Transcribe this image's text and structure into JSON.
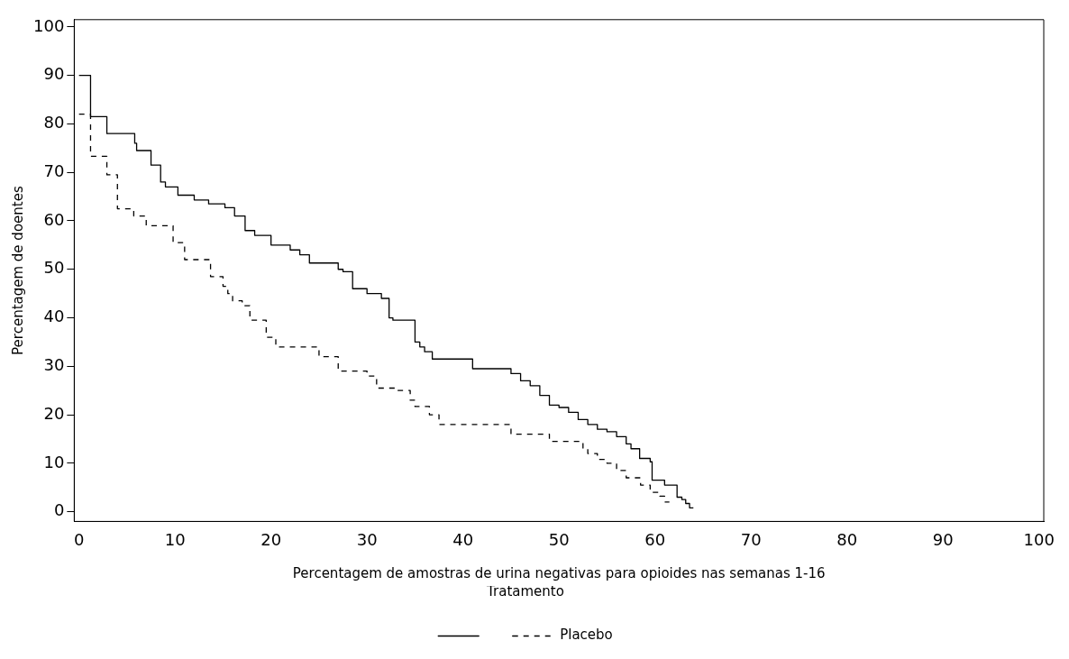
{
  "chart_data": {
    "type": "step",
    "xlabel": "Percentagem de amostras de urina negativas para opioides nas semanas 1-16",
    "ylabel": "Percentagem de doentes",
    "legend_title": "Tratamento",
    "legend": "bottom",
    "grid": false,
    "marker": "none",
    "xlim": [
      -0.5,
      100.5
    ],
    "ylim": [
      -2,
      101.5
    ],
    "xticks": [
      0,
      10,
      20,
      30,
      40,
      50,
      60,
      70,
      80,
      90,
      100
    ],
    "yticks": [
      0,
      10,
      20,
      30,
      40,
      50,
      60,
      70,
      80,
      90,
      100
    ],
    "series": [
      {
        "color": "#000000",
        "line_style": "solid",
        "x": [
          0,
          1.2,
          2.9,
          5.8,
          6,
          7.5,
          8.5,
          9,
          10.3,
          12,
          13.5,
          15.2,
          16.2,
          17.3,
          18.3,
          20,
          22,
          23,
          24,
          27,
          27.5,
          28.5,
          30,
          31.5,
          32.3,
          32.7,
          35,
          35.5,
          36,
          36.8,
          41,
          45,
          46,
          47,
          48,
          49,
          50,
          51,
          52,
          53,
          54,
          55,
          56,
          57,
          57.5,
          58.4,
          59.5,
          59.7,
          61,
          62.3,
          62.8,
          63.2,
          63.6,
          64
        ],
        "values": [
          90,
          81.5,
          78,
          76,
          74.5,
          71.5,
          68,
          67,
          65.3,
          64.3,
          63.5,
          62.7,
          61,
          58,
          57,
          55,
          54,
          53,
          51.3,
          50,
          49.5,
          46,
          45,
          44,
          40,
          39.5,
          35,
          34,
          33,
          31.5,
          29.5,
          28.5,
          27,
          26,
          24,
          22,
          21.5,
          20.5,
          19,
          18,
          17,
          16.5,
          15.5,
          14,
          13,
          11,
          10.3,
          6.5,
          5.5,
          3,
          2.5,
          1.7,
          0.8,
          0.8
        ]
      },
      {
        "name": "Placebo",
        "color": "#000000",
        "line_style": "dashed",
        "x": [
          0,
          1.2,
          2.9,
          4,
          5.7,
          7,
          9.8,
          11,
          13.7,
          15,
          15.5,
          16,
          17,
          17.8,
          19.5,
          20.5,
          25,
          27,
          30,
          31,
          33,
          34.5,
          35,
          36.5,
          37.5,
          45,
          49,
          52.5,
          53,
          54,
          55,
          56,
          57,
          58.5,
          59.5,
          60.5,
          61,
          61.5
        ],
        "values": [
          82,
          73.3,
          69.5,
          62.5,
          61,
          59,
          55.5,
          52,
          48.5,
          46.5,
          45,
          43.5,
          42.5,
          39.5,
          36,
          34,
          32,
          29,
          28,
          25.5,
          25,
          23,
          21.7,
          20,
          18,
          16,
          14.5,
          13,
          12,
          10.8,
          10,
          8.5,
          7,
          5.5,
          4,
          3.2,
          2,
          2
        ]
      }
    ]
  }
}
